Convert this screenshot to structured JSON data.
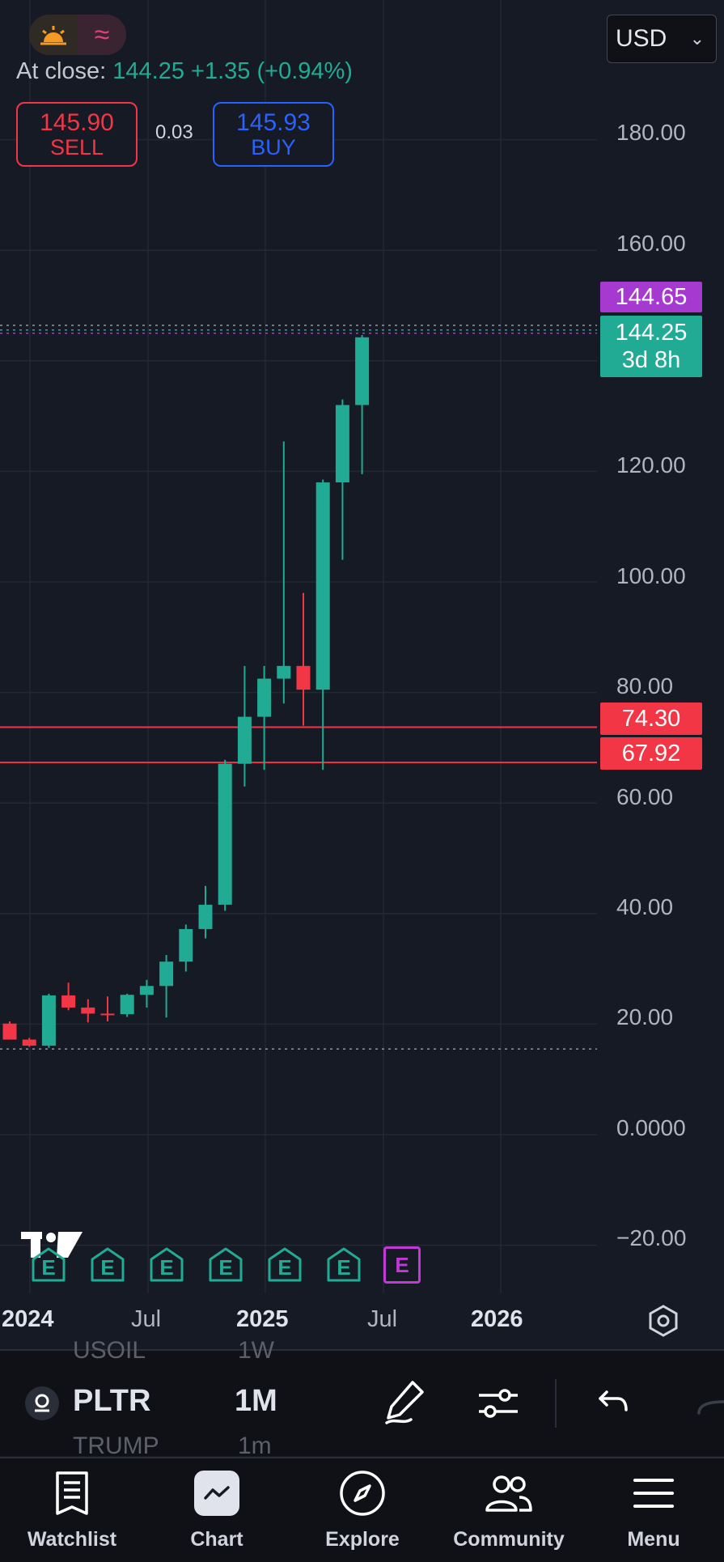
{
  "header": {
    "theme_icon": "sun-icon",
    "wave_icon": "wave-icon",
    "currency": "USD",
    "at_close_label": "At close:",
    "at_close_price": "144.25",
    "at_close_change": "+1.35 (+0.94%)"
  },
  "trade": {
    "sell_price": "145.90",
    "sell_label": "SELL",
    "spread": "0.03",
    "buy_price": "145.93",
    "buy_label": "BUY"
  },
  "price_tags": {
    "high": "144.65",
    "last": "144.25",
    "countdown": "3d 8h",
    "line_1": "74.30",
    "line_2": "67.92"
  },
  "colors": {
    "up": "#22ab94",
    "down": "#f23645",
    "high_tag": "#a63ad0",
    "background": "#161a25"
  },
  "chart_data": {
    "type": "candlestick",
    "interval": "1M",
    "symbol": "PLTR",
    "ylim": [
      -25,
      200
    ],
    "y_ticks": [
      "180.00",
      "160.00",
      "120.00",
      "100.00",
      "80.00",
      "60.00",
      "40.00",
      "20.00",
      "0.0000",
      "−20.00"
    ],
    "x_ticks": [
      "2024",
      "Jul",
      "2025",
      "Jul",
      "2026"
    ],
    "horizontal_lines": [
      74.3,
      67.92
    ],
    "dotted_low": 15.5,
    "candles": [
      {
        "month": "2023-12",
        "open": 20.1,
        "high": 20.5,
        "low": 17.2,
        "close": 17.2
      },
      {
        "month": "2024-01",
        "open": 17.2,
        "high": 17.5,
        "low": 15.9,
        "close": 16.1
      },
      {
        "month": "2024-02",
        "open": 16.1,
        "high": 25.5,
        "low": 15.7,
        "close": 25.2
      },
      {
        "month": "2024-03",
        "open": 25.2,
        "high": 27.5,
        "low": 22.5,
        "close": 23.0
      },
      {
        "month": "2024-04",
        "open": 23.0,
        "high": 24.5,
        "low": 20.3,
        "close": 21.9
      },
      {
        "month": "2024-05",
        "open": 21.9,
        "high": 25.0,
        "low": 20.5,
        "close": 21.8
      },
      {
        "month": "2024-06",
        "open": 21.8,
        "high": 25.5,
        "low": 21.3,
        "close": 25.3
      },
      {
        "month": "2024-07",
        "open": 25.3,
        "high": 28.0,
        "low": 23.0,
        "close": 26.9
      },
      {
        "month": "2024-08",
        "open": 26.9,
        "high": 32.5,
        "low": 21.2,
        "close": 31.3
      },
      {
        "month": "2024-09",
        "open": 31.3,
        "high": 38.0,
        "low": 29.5,
        "close": 37.2
      },
      {
        "month": "2024-10",
        "open": 37.2,
        "high": 45.0,
        "low": 35.5,
        "close": 41.6
      },
      {
        "month": "2024-11",
        "open": 41.6,
        "high": 67.8,
        "low": 40.5,
        "close": 67.1
      },
      {
        "month": "2024-12",
        "open": 67.1,
        "high": 84.8,
        "low": 63.0,
        "close": 75.6
      },
      {
        "month": "2025-01",
        "open": 75.6,
        "high": 84.8,
        "low": 66.0,
        "close": 82.5
      },
      {
        "month": "2025-02",
        "open": 82.5,
        "high": 125.4,
        "low": 78.0,
        "close": 84.8
      },
      {
        "month": "2025-03",
        "open": 84.8,
        "high": 98.0,
        "low": 74.0,
        "close": 80.5
      },
      {
        "month": "2025-04",
        "open": 80.5,
        "high": 118.5,
        "low": 66.0,
        "close": 118.0
      },
      {
        "month": "2025-05",
        "open": 118.0,
        "high": 133.0,
        "low": 104.0,
        "close": 132.0
      },
      {
        "month": "2025-06",
        "open": 132.0,
        "high": 144.65,
        "low": 119.5,
        "close": 144.25
      }
    ],
    "earnings_markers": [
      "E",
      "E",
      "E",
      "E",
      "E",
      "E",
      "E"
    ]
  },
  "toolbar": {
    "symbol": "PLTR",
    "interval": "1M",
    "ghost_symbol_above": "USOIL",
    "ghost_interval_above": "1W",
    "ghost_symbol_below": "TRUMP",
    "ghost_interval_below": "1m"
  },
  "nav": {
    "watchlist": "Watchlist",
    "chart": "Chart",
    "explore": "Explore",
    "community": "Community",
    "menu": "Menu"
  }
}
